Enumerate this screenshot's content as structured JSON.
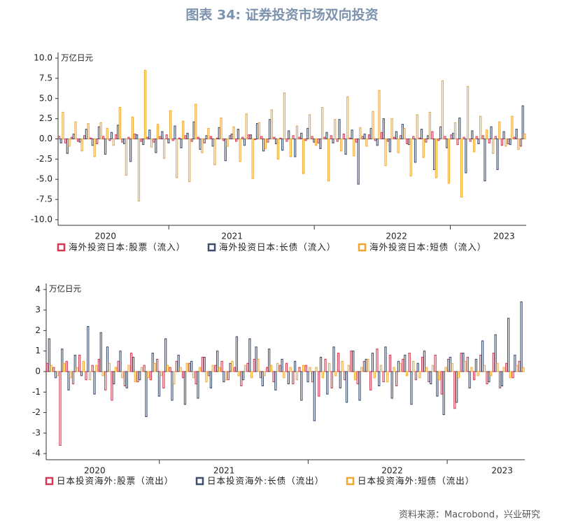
{
  "title": "图表 34: 证券投资市场双向投资",
  "source": "资料来源：Macrobond，兴业研究",
  "chart_data": [
    {
      "type": "bar",
      "unit": "万亿日元",
      "categories": [
        null,
        null,
        null,
        null,
        null,
        null,
        null,
        "2020",
        null,
        null,
        null,
        null,
        null,
        null,
        null,
        null,
        null,
        null,
        null,
        null,
        null,
        null,
        null,
        null,
        null,
        null,
        null,
        "2021",
        null,
        null,
        null,
        null,
        null,
        null,
        null,
        null,
        null,
        null,
        null,
        null,
        null,
        null,
        null,
        null,
        null,
        null,
        null,
        null,
        null,
        null,
        null,
        null,
        null,
        "2022",
        null,
        null,
        null,
        null,
        null,
        null,
        null,
        null,
        null,
        null,
        null,
        null,
        null,
        null,
        null,
        null,
        "2023",
        null,
        null,
        null
      ],
      "series": [
        {
          "name": "海外投资日本:股票（流入）",
          "color": "#d23a52",
          "values": [
            0.3,
            -0.5,
            0.2,
            -0.3,
            0.4,
            0.1,
            -0.6,
            0.3,
            -0.2,
            0.5,
            -0.4,
            0.2,
            0.6,
            -0.3,
            0.2,
            -0.4,
            0.3,
            0.5,
            -0.2,
            0.1,
            0.4,
            -0.3,
            0.2,
            -0.5,
            0.3,
            0.1,
            -0.2,
            0.4,
            -0.3,
            0.2,
            0.5,
            -0.1,
            0.3,
            -0.4,
            0.2,
            0.1,
            -0.3,
            0.4,
            0.2,
            -0.2,
            0.3,
            -0.5,
            0.2,
            0.4,
            -0.3,
            0.6,
            0.1,
            -0.4,
            0.3,
            0.5,
            -0.2,
            0.8,
            -0.3,
            0.2,
            0.4,
            -0.6,
            0.3,
            0.1,
            -0.4,
            0.9,
            -0.2,
            0.3,
            0.5,
            -0.7,
            0.2,
            -0.3,
            0.3,
            0.4,
            -0.5,
            0.3,
            -0.8,
            -0.6,
            0.2,
            -0.9
          ]
        },
        {
          "name": "海外投资日本:长债（流入）",
          "color": "#3e4f6d",
          "values": [
            -0.5,
            -1.8,
            0.6,
            -0.4,
            1.2,
            -0.8,
            1.5,
            -1.9,
            0.8,
            1.7,
            -0.6,
            -2.8,
            0.5,
            -0.7,
            1.1,
            -1.7,
            0.9,
            -0.5,
            1.6,
            -1.1,
            0.7,
            2.1,
            -1.3,
            0.4,
            -0.9,
            1.4,
            -2.7,
            0.6,
            1.2,
            -0.8,
            0.5,
            1.9,
            -1.5,
            2.4,
            -0.6,
            -1.4,
            1.0,
            -2.2,
            0.7,
            1.3,
            -0.4,
            -1.2,
            0.8,
            -0.5,
            2.4,
            -1.9,
            1.1,
            -5.6,
            0.6,
            1.3,
            -0.8,
            2.5,
            -1.6,
            0.9,
            1.8,
            -0.7,
            -2.9,
            1.2,
            0.4,
            -3.8,
            1.5,
            -1.1,
            0.7,
            2.6,
            -4.2,
            1.0,
            -0.6,
            -5.2,
            1.5,
            -3.8,
            0.9,
            -0.7,
            1.2,
            4.1
          ]
        },
        {
          "name": "海外投资日本:短债（流入）",
          "color": "#f0a732",
          "values": [
            3.3,
            -0.9,
            2.1,
            -1.5,
            1.9,
            -2.2,
            2.0,
            1.3,
            -0.8,
            3.9,
            -4.5,
            2.7,
            -7.7,
            8.5,
            -1.0,
            1.8,
            -2.4,
            3.5,
            -4.8,
            2.2,
            -5.3,
            4.3,
            -1.7,
            1.3,
            -3.2,
            2.6,
            -0.9,
            1.5,
            -2.8,
            3.1,
            -4.9,
            2.0,
            -1.2,
            3.6,
            -2.5,
            5.7,
            -2.2,
            1.6,
            -4.3,
            3.0,
            -0.8,
            3.9,
            -5.2,
            2.4,
            -1.5,
            5.2,
            -2.1,
            1.4,
            -0.9,
            3.4,
            6.0,
            -3.3,
            2.5,
            -1.7,
            1.3,
            -4.6,
            3.0,
            -2.3,
            3.3,
            -4.8,
            7.2,
            -5.5,
            2.0,
            -7.2,
            6.5,
            -1.6,
            2.8,
            1.1,
            -1.8,
            2.1,
            -0.9,
            2.8,
            -1.3,
            0.6
          ]
        }
      ],
      "ylim": [
        -10.7,
        10.7
      ],
      "yticks": [
        {
          "value": 10,
          "label": "10.0"
        },
        7.5,
        {
          "value": 5,
          "label": "5.0"
        },
        2.5,
        {
          "value": 0,
          "label": "0.0"
        },
        -2.5,
        {
          "value": -5,
          "label": "-5.0"
        },
        -7.5,
        {
          "value": -10,
          "label": "-10.0"
        }
      ]
    },
    {
      "type": "bar",
      "unit": "万亿日元",
      "categories": [
        null,
        null,
        null,
        null,
        null,
        null,
        null,
        "2020",
        null,
        null,
        null,
        null,
        null,
        null,
        null,
        null,
        null,
        null,
        null,
        null,
        null,
        null,
        null,
        null,
        null,
        null,
        null,
        "2021",
        null,
        null,
        null,
        null,
        null,
        null,
        null,
        null,
        null,
        null,
        null,
        null,
        null,
        null,
        null,
        null,
        null,
        null,
        null,
        null,
        null,
        null,
        null,
        null,
        null,
        "2022",
        null,
        null,
        null,
        null,
        null,
        null,
        null,
        null,
        null,
        null,
        null,
        null,
        null,
        null,
        null,
        null,
        "2023",
        null,
        null,
        null
      ],
      "series": [
        {
          "name": "日本投资海外:股票（流出）",
          "color": "#d23a52",
          "values": [
            0.4,
            0.2,
            -3.6,
            0.5,
            -0.6,
            0.8,
            -0.4,
            0.3,
            0.6,
            -0.9,
            -1.4,
            0.5,
            -0.7,
            0.9,
            -0.5,
            0.3,
            -0.4,
            0.6,
            -0.8,
            0.2,
            0.5,
            -0.3,
            0.4,
            -0.6,
            0.7,
            -0.2,
            0.3,
            0.5,
            -0.4,
            0.2,
            -0.7,
            0.4,
            0.6,
            -0.3,
            0.2,
            -0.5,
            0.3,
            0.4,
            -0.6,
            0.2,
            0.3,
            -0.5,
            -1.2,
            0.6,
            -0.8,
            0.9,
            -0.4,
            1.0,
            -0.6,
            0.5,
            -0.9,
            1.1,
            -0.5,
            0.8,
            -0.7,
            0.6,
            0.9,
            -0.4,
            0.7,
            -0.5,
            0.8,
            -1.1,
            0.6,
            -1.8,
            0.9,
            0.7,
            -0.4,
            0.8,
            -0.6,
            0.9,
            -0.8,
            0.4,
            -0.3,
            0.5
          ]
        },
        {
          "name": "日本投资海外:长债（流出）",
          "color": "#3e4f6d",
          "values": [
            1.6,
            -0.3,
            1.1,
            -0.9,
            0.8,
            -0.2,
            2.2,
            -1.1,
            1.9,
            1.2,
            -0.6,
            1.0,
            -0.8,
            0.7,
            -0.4,
            -2.2,
            0.9,
            -1.2,
            1.6,
            -1.4,
            0.8,
            -1.6,
            0.5,
            -1.3,
            0.7,
            -0.8,
            1.0,
            -0.5,
            0.4,
            1.7,
            -0.4,
            1.6,
            1.2,
            -0.7,
            1.1,
            -0.9,
            0.6,
            -0.6,
            0.5,
            -1.4,
            -0.5,
            -2.4,
            0.7,
            -1.1,
            1.2,
            -0.8,
            -1.5,
            1.0,
            -1.4,
            0.6,
            0.9,
            -0.7,
            1.2,
            -1.3,
            0.5,
            0.8,
            -1.6,
            0.4,
            1.0,
            -0.6,
            -1.2,
            -2.1,
            0.7,
            -1.5,
            0.9,
            -0.8,
            0.6,
            1.5,
            -0.5,
            1.8,
            -0.7,
            2.6,
            0.8,
            3.4
          ]
        },
        {
          "name": "日本投资海外:短债（流出）",
          "color": "#f0a732",
          "values": [
            0.3,
            -0.2,
            0.4,
            -0.3,
            0.2,
            0.5,
            -0.4,
            0.3,
            -0.2,
            0.4,
            0.2,
            -0.3,
            0.3,
            -0.5,
            0.2,
            -0.3,
            0.4,
            -0.2,
            0.3,
            -0.6,
            0.2,
            0.4,
            -0.3,
            0.2,
            -0.5,
            0.3,
            0.2,
            -0.4,
            0.5,
            -0.2,
            0.3,
            -0.3,
            0.6,
            -0.2,
            0.3,
            0.4,
            -0.3,
            0.2,
            -0.4,
            0.3,
            0.2,
            0.2,
            -0.3,
            0.4,
            -0.2,
            0.5,
            0.3,
            -0.4,
            0.2,
            0.6,
            -0.3,
            0.3,
            -0.5,
            0.2,
            0.4,
            -0.2,
            0.5,
            -0.3,
            0.2,
            0.3,
            -0.4,
            0.2,
            0.4,
            -0.3,
            0.5,
            0.2,
            -0.2,
            0.3,
            -0.2,
            0.4,
            0.2,
            -0.3,
            0.3,
            0.2
          ]
        }
      ],
      "ylim": [
        -4.3,
        4.3
      ],
      "yticks": [
        4,
        3,
        2,
        1,
        0,
        -1,
        -2,
        -3,
        -4
      ]
    }
  ]
}
